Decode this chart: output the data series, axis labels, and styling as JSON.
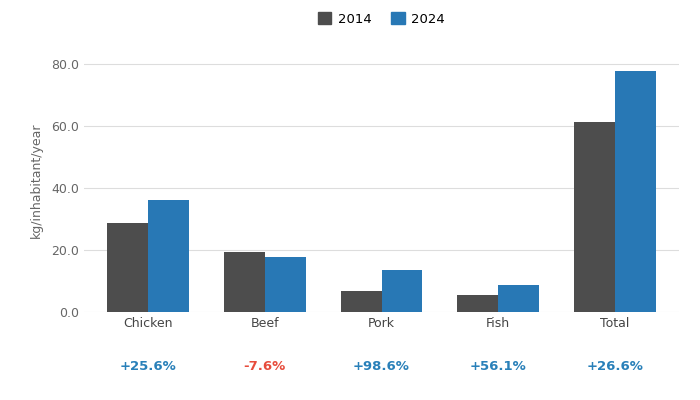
{
  "categories": [
    "Chicken",
    "Beef",
    "Pork",
    "Fish",
    "Total"
  ],
  "values_2014": [
    28.8,
    19.2,
    6.8,
    5.5,
    61.2
  ],
  "values_2024": [
    36.2,
    17.7,
    13.5,
    8.6,
    77.5
  ],
  "changes": [
    "+25.6%",
    "-7.6%",
    "+98.6%",
    "+56.1%",
    "+26.6%"
  ],
  "change_colors": [
    "#2980b9",
    "#e74c3c",
    "#2980b9",
    "#2980b9",
    "#2980b9"
  ],
  "color_2014": "#4d4d4d",
  "color_2024": "#2878b5",
  "ylabel": "kg/inhabitant/year",
  "ylim": [
    0,
    85
  ],
  "yticks": [
    0.0,
    20.0,
    40.0,
    60.0,
    80.0
  ],
  "ytick_labels": [
    "0.0",
    "20.0",
    "40.0",
    "60.0",
    "80.0"
  ],
  "legend_2014": "2014",
  "legend_2024": "2024",
  "background_color": "#ffffff",
  "bar_width": 0.35,
  "grid_color": "#dddddd"
}
